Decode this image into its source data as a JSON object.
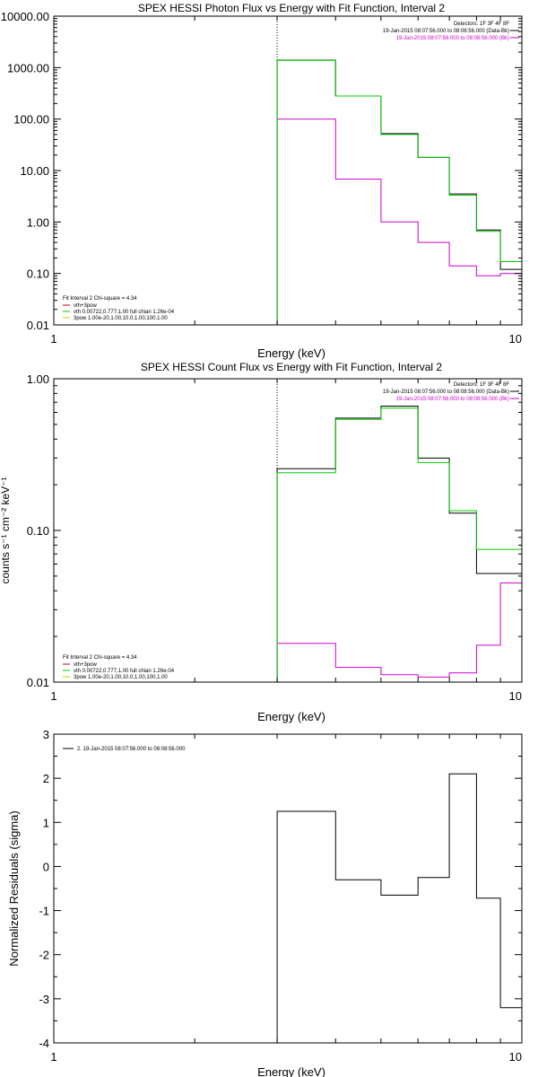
{
  "chart_data": [
    {
      "type": "line",
      "title": "SPEX HESSI Photon Flux vs Energy with Fit Function, Interval 2",
      "xlabel": "Energy (keV)",
      "ylabel": "",
      "xscale": "log",
      "yscale": "log",
      "xlim": [
        1,
        10
      ],
      "ylim": [
        0.01,
        10000
      ],
      "xticks": [
        {
          "value": 1,
          "label": "1"
        },
        {
          "value": 10,
          "label": "10"
        }
      ],
      "yticks": [
        {
          "value": 10000,
          "label": "10000.00"
        },
        {
          "value": 1000,
          "label": "1000.00"
        },
        {
          "value": 100,
          "label": "100.00"
        },
        {
          "value": 10,
          "label": "10.00"
        },
        {
          "value": 1,
          "label": "1.00"
        },
        {
          "value": 0.1,
          "label": "0.10"
        },
        {
          "value": 0.01,
          "label": "0.01"
        }
      ],
      "marker_x": 3.0,
      "info_lines": [
        "Detectors: 1F 3F 4F 8F",
        "19-Jan-2015 08:07:56.000 to 08:08:56.000 (Data-Bk)",
        "19-Jan-2015 08:07:56.000 to 08:08:56.000 (Bk)"
      ],
      "info_colors": [
        "#000000",
        "#000000",
        "#cc00cc"
      ],
      "fit_lines": [
        "Fit Interval 2   Chi-square = 4.34",
        "vth+3pow",
        "vth 0.00722,0.777,1.00  full chian 1.26e-04",
        "3pow 1.00e-20,1.00,10.0,1.00,100,1.00"
      ],
      "fit_colors": [
        "#000000",
        "#cc0000",
        "#00cc00",
        "#cccc00"
      ],
      "series": [
        {
          "name": "Data-Bk",
          "color": "#000000",
          "edges": [
            3.0,
            4.0,
            5.0,
            6.0,
            7.0,
            8.0,
            9.0,
            10.0
          ],
          "values": [
            1400,
            280,
            52,
            18,
            3.5,
            0.7,
            0.12
          ]
        },
        {
          "name": "Bk",
          "color": "#cc00cc",
          "edges": [
            3.0,
            4.0,
            5.0,
            6.0,
            7.0,
            8.0,
            9.0,
            10.0
          ],
          "values": [
            100,
            6.8,
            1.0,
            0.4,
            0.14,
            0.09,
            0.1
          ]
        },
        {
          "name": "Fit",
          "color": "#00cc00",
          "edges": [
            3.0,
            4.0,
            5.0,
            6.0,
            7.0,
            8.0,
            9.0,
            10.0
          ],
          "values": [
            1380,
            280,
            50,
            18,
            3.3,
            0.66,
            0.17
          ]
        }
      ]
    },
    {
      "type": "line",
      "title": "SPEX HESSI Count Flux vs Energy with Fit Function, Interval 2",
      "xlabel": "Energy (keV)",
      "ylabel": "counts s⁻¹ cm⁻² keV⁻¹",
      "xscale": "log",
      "yscale": "log",
      "xlim": [
        1,
        10
      ],
      "ylim": [
        0.01,
        1.0
      ],
      "xticks": [
        {
          "value": 1,
          "label": "1"
        },
        {
          "value": 10,
          "label": "10"
        }
      ],
      "yticks": [
        {
          "value": 1.0,
          "label": "1.00"
        },
        {
          "value": 0.1,
          "label": "0.10"
        },
        {
          "value": 0.01,
          "label": "0.01"
        }
      ],
      "marker_x": 3.0,
      "info_lines": [
        "Detectors: 1F 3F 4F 8F",
        "19-Jan-2015 08:07:56.000 to 08:08:56.000 (Data-Bk)",
        "19-Jan-2015 08:07:56.000 to 08:08:56.000 (Bk)"
      ],
      "info_colors": [
        "#000000",
        "#000000",
        "#cc00cc"
      ],
      "fit_lines": [
        "Fit Interval 2   Chi-square = 4.34",
        "vth+3pow",
        "vth 0.00722,0.777,1.00  full chian 1.26e-04",
        "3pow 1.00e-20,1.00,10.0,1.00,100,1.00"
      ],
      "fit_colors": [
        "#000000",
        "#cc0000",
        "#00cc00",
        "#cccc00"
      ],
      "series": [
        {
          "name": "Data-Bk",
          "color": "#000000",
          "edges": [
            3.0,
            4.0,
            5.0,
            6.0,
            7.0,
            8.0,
            9.0,
            10.0
          ],
          "values": [
            0.255,
            0.55,
            0.66,
            0.3,
            0.13,
            0.052,
            0.052
          ]
        },
        {
          "name": "Bk",
          "color": "#cc00cc",
          "edges": [
            3.0,
            4.0,
            5.0,
            6.0,
            7.0,
            8.0,
            9.0,
            10.0
          ],
          "values": [
            0.018,
            0.0125,
            0.0112,
            0.0108,
            0.0115,
            0.0175,
            0.045
          ]
        },
        {
          "name": "Fit",
          "color": "#00cc00",
          "edges": [
            3.0,
            4.0,
            5.0,
            6.0,
            7.0,
            8.0,
            9.0,
            10.0
          ],
          "values": [
            0.24,
            0.54,
            0.64,
            0.28,
            0.135,
            0.075,
            0.075
          ]
        }
      ]
    },
    {
      "type": "line",
      "title": "",
      "xlabel": "Energy (keV)",
      "ylabel": "Normalized Residuals (sigma)",
      "xscale": "log",
      "yscale": "linear",
      "xlim": [
        1,
        10
      ],
      "ylim": [
        -4,
        3
      ],
      "xticks": [
        {
          "value": 1,
          "label": "1"
        },
        {
          "value": 10,
          "label": "10"
        }
      ],
      "yticks": [
        {
          "value": 3,
          "label": "3"
        },
        {
          "value": 2,
          "label": "2"
        },
        {
          "value": 1,
          "label": "1"
        },
        {
          "value": 0,
          "label": "0"
        },
        {
          "value": -1,
          "label": "-1"
        },
        {
          "value": -2,
          "label": "-2"
        },
        {
          "value": -3,
          "label": "-3"
        },
        {
          "value": -4,
          "label": "-4"
        }
      ],
      "legend": "2. 19-Jan-2015 08:07:56.000 to 08:08:56.000",
      "series": [
        {
          "name": "",
          "color": "#000000",
          "edges": [
            3.0,
            4.0,
            5.0,
            6.0,
            7.0,
            8.0,
            9.0,
            10.0
          ],
          "values": [
            1.25,
            -0.3,
            -0.65,
            -0.25,
            2.1,
            -0.72,
            -3.2
          ]
        }
      ]
    }
  ]
}
